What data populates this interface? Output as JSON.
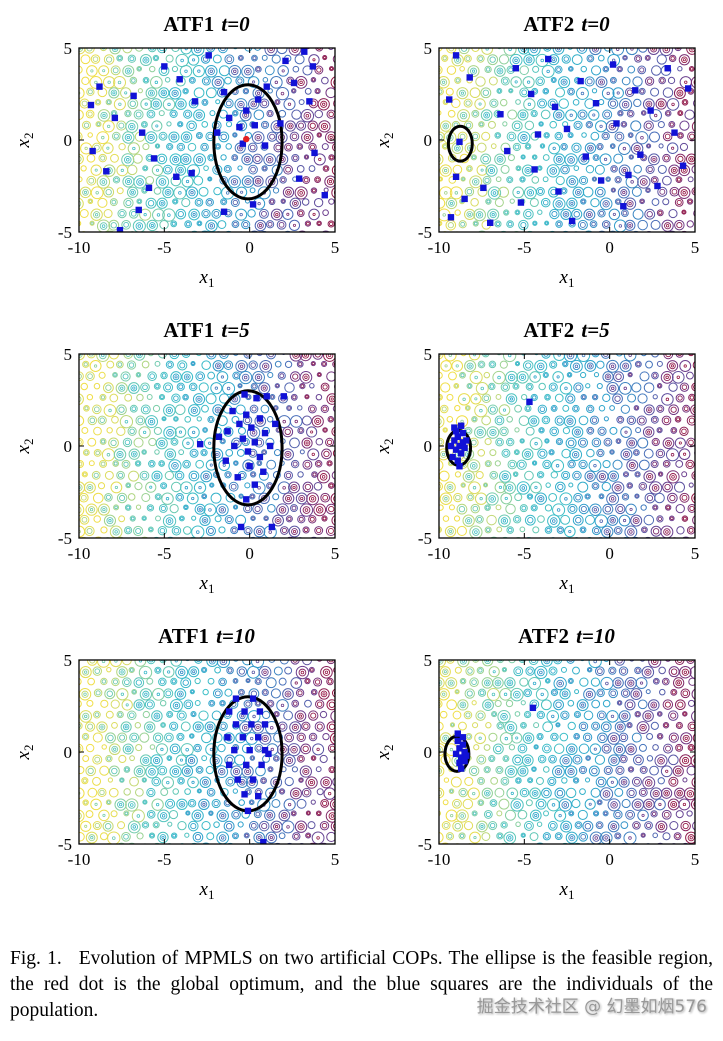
{
  "figure": {
    "caption_label": "Fig. 1.",
    "caption_text": "Evolution of MPMLS on two artificial COPs. The ellipse is the feasible region, the red dot is the global optimum, and the blue squares are the individuals of the population."
  },
  "watermark": "掘金技术社区 @ 幻墨如烟576",
  "axes": {
    "xlabel_base": "x",
    "xlabel_sub": "1",
    "ylabel_base": "x",
    "ylabel_sub": "2",
    "xticks": [
      -10,
      -5,
      0,
      5
    ],
    "yticks": [
      -5,
      0,
      5
    ],
    "xlim": [
      -10,
      5
    ],
    "ylim": [
      -5,
      5
    ]
  },
  "colors": {
    "marker": "#1111d6",
    "optimum": "#e32222",
    "ellipse": "#000000"
  },
  "contour": {
    "stops": [
      {
        "t": 0.0,
        "c": "#f0de46"
      },
      {
        "t": 0.1,
        "c": "#d8dc64"
      },
      {
        "t": 0.22,
        "c": "#7acdaa"
      },
      {
        "t": 0.38,
        "c": "#3cbec8"
      },
      {
        "t": 0.55,
        "c": "#2da0cd"
      },
      {
        "t": 0.7,
        "c": "#4a6eb9"
      },
      {
        "t": 0.85,
        "c": "#6e3c8c"
      },
      {
        "t": 1.0,
        "c": "#961946"
      }
    ]
  },
  "chart_data": [
    {
      "type": "scatter",
      "title_name": "ATF1",
      "title_time": "t=0",
      "ellipse": {
        "cx": -0.1,
        "cy": -0.1,
        "rx": 2.0,
        "ry": 3.1
      },
      "optimum": [
        -0.2,
        0.05
      ],
      "points": [
        [
          -8.8,
          2.9
        ],
        [
          -9.3,
          1.9
        ],
        [
          -7.9,
          1.2
        ],
        [
          -9.2,
          -0.6
        ],
        [
          -8.4,
          -1.7
        ],
        [
          -7.6,
          -4.9
        ],
        [
          -6.8,
          2.4
        ],
        [
          -6.3,
          0.4
        ],
        [
          -5.6,
          -1.0
        ],
        [
          -5.9,
          -2.6
        ],
        [
          -5.0,
          4.0
        ],
        [
          -4.1,
          3.3
        ],
        [
          -4.3,
          -2.0
        ],
        [
          -3.4,
          -1.8
        ],
        [
          -3.2,
          2.1
        ],
        [
          -2.4,
          4.6
        ],
        [
          -1.9,
          0.4
        ],
        [
          -1.5,
          2.6
        ],
        [
          -1.2,
          1.2
        ],
        [
          -0.6,
          0.7
        ],
        [
          -0.4,
          -0.2
        ],
        [
          -0.2,
          1.6
        ],
        [
          0.3,
          0.8
        ],
        [
          0.9,
          -0.3
        ],
        [
          0.2,
          -3.5
        ],
        [
          -1.5,
          -3.9
        ],
        [
          1.0,
          2.9
        ],
        [
          2.1,
          4.3
        ],
        [
          2.6,
          3.1
        ],
        [
          3.2,
          4.8
        ],
        [
          3.5,
          2.1
        ],
        [
          3.8,
          -0.7
        ],
        [
          2.9,
          -2.1
        ],
        [
          4.4,
          -3.0
        ],
        [
          3.7,
          4.0
        ],
        [
          -6.5,
          -3.8
        ],
        [
          1.8,
          0.9
        ],
        [
          0.5,
          2.2
        ]
      ]
    },
    {
      "type": "scatter",
      "title_name": "ATF2",
      "title_time": "t=0",
      "ellipse": {
        "cx": -8.75,
        "cy": -0.2,
        "rx": 0.7,
        "ry": 0.95
      },
      "optimum": null,
      "points": [
        [
          -9.0,
          4.6
        ],
        [
          -8.2,
          3.4
        ],
        [
          -9.4,
          2.2
        ],
        [
          -8.8,
          -0.1
        ],
        [
          -9.0,
          -2.0
        ],
        [
          -8.5,
          -3.2
        ],
        [
          -9.3,
          -4.2
        ],
        [
          -7.4,
          -2.6
        ],
        [
          -7.0,
          -4.5
        ],
        [
          -6.4,
          1.4
        ],
        [
          -6.0,
          -0.6
        ],
        [
          -5.5,
          3.9
        ],
        [
          -5.2,
          -3.4
        ],
        [
          -4.6,
          2.5
        ],
        [
          -4.2,
          0.3
        ],
        [
          -4.4,
          -1.6
        ],
        [
          -3.6,
          4.4
        ],
        [
          -3.2,
          1.8
        ],
        [
          -3.0,
          -2.8
        ],
        [
          -2.5,
          0.6
        ],
        [
          -2.2,
          -4.4
        ],
        [
          -1.7,
          3.2
        ],
        [
          -1.4,
          -0.9
        ],
        [
          -0.8,
          2.0
        ],
        [
          -0.5,
          -2.2
        ],
        [
          0.2,
          4.1
        ],
        [
          0.4,
          0.9
        ],
        [
          0.8,
          -3.6
        ],
        [
          1.5,
          2.7
        ],
        [
          1.8,
          -0.8
        ],
        [
          2.4,
          1.6
        ],
        [
          2.8,
          -2.5
        ],
        [
          3.4,
          3.9
        ],
        [
          3.8,
          0.4
        ],
        [
          4.3,
          -1.4
        ],
        [
          4.6,
          2.8
        ],
        [
          1.1,
          -1.9
        ]
      ]
    },
    {
      "type": "scatter",
      "title_name": "ATF1",
      "title_time": "t=5",
      "ellipse": {
        "cx": -0.1,
        "cy": -0.1,
        "rx": 2.0,
        "ry": 3.1
      },
      "optimum": null,
      "points": [
        [
          -0.3,
          2.8
        ],
        [
          0.4,
          2.6
        ],
        [
          -1.0,
          1.9
        ],
        [
          -0.2,
          1.7
        ],
        [
          0.6,
          1.5
        ],
        [
          -0.6,
          1.2
        ],
        [
          0.1,
          1.0
        ],
        [
          -1.3,
          0.8
        ],
        [
          0.9,
          0.7
        ],
        [
          -0.4,
          0.4
        ],
        [
          0.3,
          0.2
        ],
        [
          -0.9,
          0.0
        ],
        [
          1.2,
          0.0
        ],
        [
          -0.1,
          -0.3
        ],
        [
          0.6,
          -0.6
        ],
        [
          -1.4,
          -0.8
        ],
        [
          0.0,
          -1.1
        ],
        [
          0.8,
          -1.4
        ],
        [
          -0.7,
          -1.7
        ],
        [
          0.3,
          -2.1
        ],
        [
          -0.2,
          -2.9
        ],
        [
          1.0,
          2.7
        ],
        [
          2.0,
          2.7
        ],
        [
          -2.9,
          0.1
        ],
        [
          -0.5,
          -4.4
        ],
        [
          1.3,
          -4.4
        ],
        [
          -1.8,
          0.5
        ],
        [
          1.5,
          1.2
        ]
      ]
    },
    {
      "type": "scatter",
      "title_name": "ATF2",
      "title_time": "t=5",
      "ellipse": {
        "cx": -8.85,
        "cy": -0.1,
        "rx": 0.7,
        "ry": 0.95
      },
      "optimum": null,
      "points": [
        [
          -9.3,
          0.0
        ],
        [
          -9.1,
          0.3
        ],
        [
          -9.0,
          -0.2
        ],
        [
          -8.9,
          0.5
        ],
        [
          -8.8,
          0.0
        ],
        [
          -8.7,
          -0.4
        ],
        [
          -8.6,
          0.2
        ],
        [
          -9.2,
          -0.6
        ],
        [
          -8.9,
          -0.8
        ],
        [
          -9.0,
          0.8
        ],
        [
          -8.5,
          -0.1
        ],
        [
          -8.8,
          -1.1
        ],
        [
          -9.1,
          1.0
        ],
        [
          -8.6,
          0.7
        ],
        [
          -8.4,
          0.3
        ],
        [
          -8.7,
          1.1
        ],
        [
          -4.7,
          2.4
        ]
      ]
    },
    {
      "type": "scatter",
      "title_name": "ATF1",
      "title_time": "t=10",
      "ellipse": {
        "cx": -0.1,
        "cy": -0.1,
        "rx": 2.0,
        "ry": 3.1
      },
      "optimum": null,
      "points": [
        [
          -0.8,
          2.9
        ],
        [
          0.2,
          2.9
        ],
        [
          -1.2,
          2.2
        ],
        [
          -0.3,
          2.2
        ],
        [
          0.6,
          2.2
        ],
        [
          -0.8,
          1.5
        ],
        [
          0.1,
          1.5
        ],
        [
          0.9,
          1.5
        ],
        [
          -1.3,
          0.8
        ],
        [
          -0.4,
          0.8
        ],
        [
          0.5,
          0.8
        ],
        [
          -0.9,
          0.1
        ],
        [
          0.0,
          0.1
        ],
        [
          0.9,
          0.1
        ],
        [
          -1.2,
          -0.7
        ],
        [
          -0.2,
          -0.7
        ],
        [
          0.7,
          -0.7
        ],
        [
          -0.7,
          -1.5
        ],
        [
          0.2,
          -1.5
        ],
        [
          -0.3,
          -2.3
        ],
        [
          0.5,
          -2.4
        ],
        [
          -0.1,
          -3.2
        ],
        [
          1.1,
          -0.1
        ],
        [
          0.8,
          -4.9
        ]
      ]
    },
    {
      "type": "scatter",
      "title_name": "ATF2",
      "title_time": "t=10",
      "ellipse": {
        "cx": -8.95,
        "cy": -0.1,
        "rx": 0.7,
        "ry": 0.95
      },
      "optimum": null,
      "points": [
        [
          -8.9,
          0.6
        ],
        [
          -8.8,
          0.2
        ],
        [
          -9.0,
          -0.1
        ],
        [
          -8.7,
          -0.3
        ],
        [
          -8.6,
          0.4
        ],
        [
          -8.8,
          -0.6
        ],
        [
          -8.5,
          0.0
        ],
        [
          -8.9,
          1.0
        ],
        [
          -8.6,
          0.8
        ],
        [
          -8.4,
          -0.2
        ],
        [
          -8.7,
          -0.9
        ],
        [
          -8.5,
          -0.5
        ],
        [
          -4.5,
          2.4
        ]
      ]
    }
  ]
}
